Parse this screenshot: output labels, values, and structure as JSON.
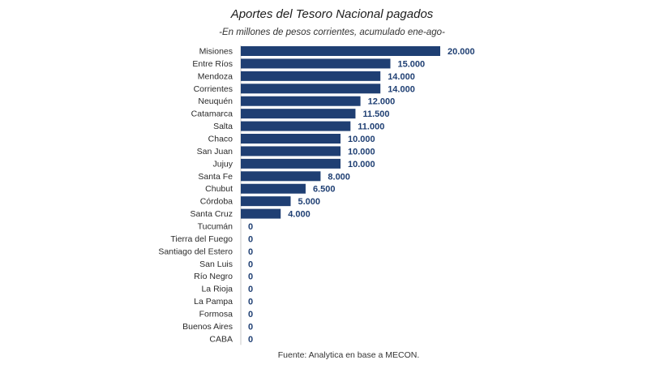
{
  "chart_data": {
    "type": "bar",
    "orientation": "horizontal",
    "title": "Aportes del Tesoro Nacional pagados",
    "subtitle": "-En millones de pesos corrientes, acumulado ene-ago-",
    "categories": [
      "Misiones",
      "Entre Ríos",
      "Mendoza",
      "Corrientes",
      "Neuquén",
      "Catamarca",
      "Salta",
      "Chaco",
      "San Juan",
      "Jujuy",
      "Santa Fe",
      "Chubut",
      "Córdoba",
      "Santa Cruz",
      "Tucumán",
      "Tierra del Fuego",
      "Santiago del Estero",
      "San Luis",
      "Río Negro",
      "La Rioja",
      "La Pampa",
      "Formosa",
      "Buenos Aires",
      "CABA"
    ],
    "values": [
      20000,
      15000,
      14000,
      14000,
      12000,
      11500,
      11000,
      10000,
      10000,
      10000,
      8000,
      6500,
      5000,
      4000,
      0,
      0,
      0,
      0,
      0,
      0,
      0,
      0,
      0,
      0
    ],
    "value_labels": [
      "20.000",
      "15.000",
      "14.000",
      "14.000",
      "12.000",
      "11.500",
      "11.000",
      "10.000",
      "10.000",
      "10.000",
      "8.000",
      "6.500",
      "5.000",
      "4.000",
      "0",
      "0",
      "0",
      "0",
      "0",
      "0",
      "0",
      "0",
      "0",
      "0"
    ],
    "xlim": [
      0,
      20000
    ],
    "grid": false,
    "legend": "none",
    "bar_color": "#1f3f73",
    "label_color": "#1f3f73"
  },
  "source": "Fuente: Analytica en base a MECON."
}
